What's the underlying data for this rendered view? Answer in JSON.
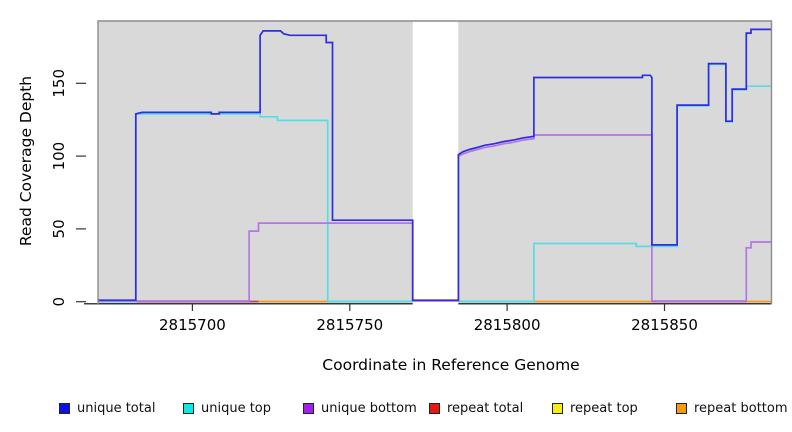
{
  "figure": {
    "xlabel": "Coordinate in Reference Genome",
    "ylabel": "Read Coverage Depth",
    "plot_background": "#d9d9d9",
    "frame_color": "#8c8c8c",
    "masked_band_color": "#ffffff"
  },
  "axes": {
    "x": {
      "ticks": [
        "2815700",
        "2815750",
        "2815800",
        "2815850"
      ]
    },
    "y": {
      "ticks": [
        "0",
        "50",
        "100",
        "150"
      ]
    }
  },
  "chart_data": {
    "type": "line",
    "subtype": "step-coverage",
    "title": "",
    "xlabel": "Coordinate in Reference Genome",
    "ylabel": "Read Coverage Depth",
    "xlim": [
      2815670,
      2815884
    ],
    "ylim": [
      0,
      193
    ],
    "x_ticks": [
      2815700,
      2815750,
      2815800,
      2815850
    ],
    "y_ticks": [
      0,
      50,
      100,
      150
    ],
    "grid": false,
    "legend_position": "bottom",
    "masked_region": {
      "x_start": 2815770,
      "x_end": 2815784.5,
      "note": "white vertical band, data blanked"
    },
    "series": [
      {
        "name": "unique top",
        "color": "#55dde6",
        "layer": "under",
        "points": [
          [
            2815670,
            0
          ],
          [
            2815682,
            0
          ],
          [
            2815682,
            129
          ],
          [
            2815721.5,
            129
          ],
          [
            2815721.5,
            127
          ],
          [
            2815727,
            127
          ],
          [
            2815727,
            124.5
          ],
          [
            2815743,
            124.5
          ],
          [
            2815743,
            0.2
          ],
          [
            2815808.5,
            0.2
          ],
          [
            2815808.5,
            40
          ],
          [
            2815841,
            40
          ],
          [
            2815841,
            38
          ],
          [
            2815854,
            38
          ],
          [
            2815854,
            134.5
          ],
          [
            2815864,
            134.5
          ],
          [
            2815864,
            163
          ],
          [
            2815869.5,
            163
          ],
          [
            2815869.5,
            123.5
          ],
          [
            2815871.5,
            123.5
          ],
          [
            2815871.5,
            145.5
          ],
          [
            2815876,
            145.5
          ],
          [
            2815876,
            148
          ],
          [
            2815884,
            148
          ]
        ]
      },
      {
        "name": "unique bottom",
        "color": "#b277e2",
        "layer": "mid",
        "points": [
          [
            2815670,
            0.5
          ],
          [
            2815718,
            0.5
          ],
          [
            2815718,
            48.5
          ],
          [
            2815721,
            48.5
          ],
          [
            2815721,
            54
          ],
          [
            2815770,
            54
          ],
          [
            2815770,
            0.5
          ],
          [
            2815784.5,
            0.5
          ],
          [
            2815784.5,
            100
          ],
          [
            2815786,
            101.5
          ],
          [
            2815788,
            103
          ],
          [
            2815790.5,
            104.5
          ],
          [
            2815793,
            106
          ],
          [
            2815796,
            107
          ],
          [
            2815799,
            108.5
          ],
          [
            2815802,
            109.5
          ],
          [
            2815805,
            111
          ],
          [
            2815808.5,
            112
          ],
          [
            2815808.5,
            114.5
          ],
          [
            2815846,
            114.5
          ],
          [
            2815846,
            0.5
          ],
          [
            2815876,
            0.5
          ],
          [
            2815876,
            37
          ],
          [
            2815877.5,
            37
          ],
          [
            2815877.5,
            41
          ],
          [
            2815884,
            41
          ]
        ]
      },
      {
        "name": "unique total",
        "color": "#2e2ee0",
        "layer": "mid",
        "points": [
          [
            2815670,
            1
          ],
          [
            2815682,
            1
          ],
          [
            2815682,
            129
          ],
          [
            2815684,
            130
          ],
          [
            2815706,
            130
          ],
          [
            2815706,
            129
          ],
          [
            2815708.5,
            129
          ],
          [
            2815708.5,
            130
          ],
          [
            2815721.5,
            130
          ],
          [
            2815721.5,
            183
          ],
          [
            2815722.5,
            186
          ],
          [
            2815728,
            186
          ],
          [
            2815729,
            184
          ],
          [
            2815731,
            183
          ],
          [
            2815742.5,
            183
          ],
          [
            2815742.5,
            178
          ],
          [
            2815744.5,
            178
          ],
          [
            2815744.5,
            56
          ],
          [
            2815770,
            56
          ],
          [
            2815770,
            1
          ],
          [
            2815784.5,
            1
          ],
          [
            2815784.5,
            101
          ],
          [
            2815786,
            103
          ],
          [
            2815788,
            104.5
          ],
          [
            2815790.5,
            106
          ],
          [
            2815793,
            107.5
          ],
          [
            2815796,
            108.5
          ],
          [
            2815799,
            110
          ],
          [
            2815802,
            111
          ],
          [
            2815805,
            112.5
          ],
          [
            2815808.5,
            113.5
          ],
          [
            2815808.5,
            154
          ],
          [
            2815843,
            154
          ],
          [
            2815843,
            155.5
          ],
          [
            2815845.5,
            155.5
          ],
          [
            2815846,
            154
          ],
          [
            2815846,
            39
          ],
          [
            2815854,
            39
          ],
          [
            2815854,
            135
          ],
          [
            2815864,
            135
          ],
          [
            2815864,
            163.5
          ],
          [
            2815869.5,
            163.5
          ],
          [
            2815869.5,
            124
          ],
          [
            2815871.5,
            124
          ],
          [
            2815871.5,
            146
          ],
          [
            2815876,
            146
          ],
          [
            2815876,
            184.5
          ],
          [
            2815877.5,
            184.5
          ],
          [
            2815877.5,
            187
          ],
          [
            2815884,
            187
          ]
        ]
      },
      {
        "name": "repeat total",
        "color": "#c23a60",
        "layer": "baseline",
        "render": "baseline",
        "points": [
          [
            2815670,
            1
          ],
          [
            2815884,
            1
          ]
        ]
      },
      {
        "name": "repeat top",
        "color": "#f0e614",
        "layer": "baseline",
        "render": "baseline",
        "points": [
          [
            2815670,
            0.8
          ],
          [
            2815884,
            0.8
          ]
        ]
      },
      {
        "name": "repeat bottom",
        "color": "#f79b20",
        "layer": "baseline",
        "render": "baseline",
        "points": [
          [
            2815670,
            1
          ],
          [
            2815884,
            1
          ]
        ]
      }
    ],
    "baseline_segments": [
      {
        "x_start": 2815670,
        "x_end": 2815682,
        "color": "#b3a9ef"
      },
      {
        "x_start": 2815682,
        "x_end": 2815721,
        "color": "#c23a60"
      },
      {
        "x_start": 2815721,
        "x_end": 2815744.5,
        "color": "#f79b20"
      },
      {
        "x_start": 2815744.5,
        "x_end": 2815770,
        "color": "#96d6a0"
      },
      {
        "x_start": 2815784.5,
        "x_end": 2815808.5,
        "color": "#96d6a0"
      },
      {
        "x_start": 2815808.5,
        "x_end": 2815846,
        "color": "#f79b20"
      },
      {
        "x_start": 2815846,
        "x_end": 2815876,
        "color": "#c9497e"
      },
      {
        "x_start": 2815876,
        "x_end": 2815884,
        "color": "#f79b20"
      }
    ]
  },
  "legend": {
    "items": [
      {
        "label": "unique total",
        "color": "#0f0fe8"
      },
      {
        "label": "unique top",
        "color": "#0fe8e8"
      },
      {
        "label": "unique bottom",
        "color": "#a020f0"
      },
      {
        "label": "repeat total",
        "color": "#e8170f"
      },
      {
        "label": "repeat top",
        "color": "#f5ef0f"
      },
      {
        "label": "repeat bottom",
        "color": "#f59b0f"
      }
    ]
  }
}
